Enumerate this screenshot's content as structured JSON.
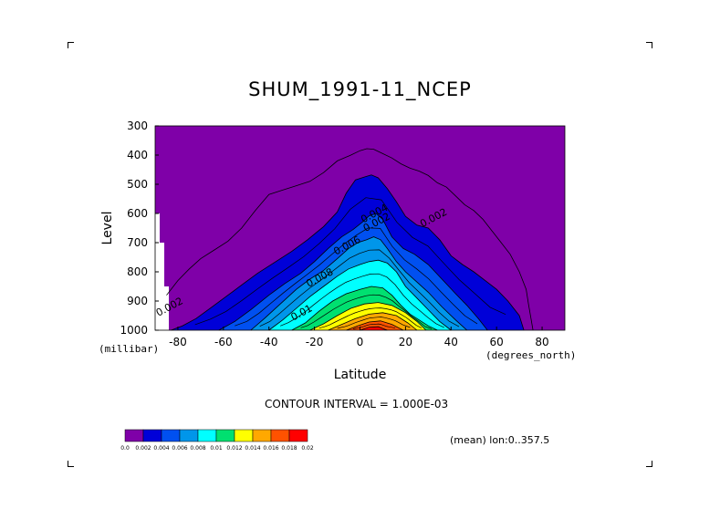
{
  "chart_data": {
    "type": "heatmap",
    "title": "SHUM_1991-11_NCEP",
    "xlabel": "Latitude",
    "ylabel": "Level",
    "x_unit_label": "(degrees_north)",
    "y_unit_label": "(millibar)",
    "xlim": [
      -90,
      90
    ],
    "ylim": [
      1000,
      300
    ],
    "x_ticks": [
      "-80",
      "-60",
      "-40",
      "-20",
      "0",
      "20",
      "40",
      "60",
      "80"
    ],
    "y_ticks": [
      "300",
      "400",
      "500",
      "600",
      "700",
      "800",
      "900",
      "1000"
    ],
    "contour_interval_text": "CONTOUR INTERVAL = 1.000E-03",
    "mean_text": "(mean) lon:0..357.5",
    "colorbar": {
      "colors": [
        "#7f00a8",
        "#0000d8",
        "#0050f0",
        "#0096ea",
        "#00ffff",
        "#00e070",
        "#ffff00",
        "#ffa800",
        "#ff5200",
        "#ff0000"
      ],
      "labels": [
        "0.0",
        "0.002",
        "0.004",
        "0.006",
        "0.008",
        "0.01",
        "0.012",
        "0.014",
        "0.016",
        "0.018",
        "0.02"
      ]
    },
    "contour_labels": [
      {
        "text": "0.002",
        "lat": 8,
        "level": 640
      },
      {
        "text": "0.002",
        "lat": 33,
        "level": 625
      },
      {
        "text": "0.004",
        "lat": 7,
        "level": 610
      },
      {
        "text": "0.006",
        "lat": -5,
        "level": 720
      },
      {
        "text": "0.008",
        "lat": -17,
        "level": 830
      },
      {
        "text": "0.01",
        "lat": -25,
        "level": 950
      },
      {
        "text": "0.002",
        "lat": -83,
        "level": 930
      }
    ],
    "series": [
      {
        "level_value": 0.0,
        "color": "#7f00a8",
        "lat": [
          -90,
          90
        ],
        "level": [
          300,
          300
        ]
      },
      {
        "level_value": 0.002,
        "color": "#0000d8",
        "lat": [
          -83,
          -78,
          -72,
          -65,
          -58,
          -52,
          -45,
          -38,
          -30,
          -23,
          -16,
          -10,
          -6,
          -2,
          2,
          5,
          8,
          12,
          16,
          20,
          25,
          30,
          35,
          40,
          45,
          50,
          55,
          60,
          65,
          70,
          72
        ],
        "level": [
          1000,
          985,
          960,
          920,
          880,
          845,
          805,
          770,
          730,
          690,
          645,
          595,
          530,
          485,
          475,
          468,
          478,
          515,
          560,
          610,
          640,
          650,
          690,
          745,
          775,
          800,
          830,
          860,
          900,
          950,
          1000
        ]
      },
      {
        "level_value": 0.004,
        "color": "#0050f0",
        "lat": [
          -62,
          -55,
          -48,
          -40,
          -33,
          -26,
          -20,
          -14,
          -8,
          -3,
          1,
          4,
          7,
          10,
          14,
          19,
          24,
          30,
          36,
          42,
          47,
          52,
          56
        ],
        "level": [
          1000,
          970,
          930,
          880,
          840,
          805,
          765,
          720,
          680,
          655,
          630,
          608,
          600,
          620,
          680,
          720,
          740,
          775,
          825,
          875,
          915,
          960,
          1000
        ]
      },
      {
        "level_value": 0.006,
        "color": "#0096ea",
        "lat": [
          -48,
          -42,
          -35,
          -28,
          -22,
          -16,
          -10,
          -5,
          -1,
          3,
          6,
          9,
          12,
          16,
          20,
          25,
          30,
          36,
          42,
          47
        ],
        "level": [
          1000,
          960,
          910,
          860,
          825,
          795,
          755,
          720,
          700,
          690,
          680,
          690,
          720,
          765,
          800,
          835,
          870,
          920,
          965,
          1000
        ]
      },
      {
        "level_value": 0.008,
        "color": "#00ffff",
        "lat": [
          -40,
          -34,
          -28,
          -22,
          -16,
          -10,
          -5,
          0,
          4,
          8,
          12,
          16,
          20,
          25,
          30,
          35,
          40
        ],
        "level": [
          1000,
          965,
          925,
          885,
          850,
          815,
          790,
          775,
          765,
          760,
          770,
          800,
          850,
          890,
          930,
          970,
          1000
        ]
      },
      {
        "level_value": 0.01,
        "color": "#00e070",
        "lat": [
          -30,
          -24,
          -18,
          -12,
          -6,
          0,
          5,
          10,
          14,
          18,
          22,
          26,
          30,
          34
        ],
        "level": [
          1000,
          975,
          935,
          900,
          875,
          860,
          850,
          855,
          880,
          915,
          945,
          965,
          985,
          1000
        ]
      },
      {
        "level_value": 0.012,
        "color": "#ffff00",
        "lat": [
          -22,
          -16,
          -10,
          -4,
          2,
          8,
          14,
          20,
          25,
          29
        ],
        "level": [
          1000,
          978,
          950,
          925,
          910,
          905,
          915,
          940,
          970,
          1000
        ]
      },
      {
        "level_value": 0.014,
        "color": "#ffa800",
        "lat": [
          -14,
          -8,
          -2,
          4,
          10,
          16,
          21,
          25
        ],
        "level": [
          1000,
          980,
          960,
          945,
          940,
          950,
          975,
          1000
        ]
      },
      {
        "level_value": 0.016,
        "color": "#ff5200",
        "lat": [
          -6,
          -1,
          4,
          9,
          14,
          19
        ],
        "level": [
          1000,
          985,
          972,
          968,
          980,
          1000
        ]
      },
      {
        "level_value": 0.018,
        "color": "#ff0000",
        "lat": [
          0,
          4,
          8,
          12
        ],
        "level": [
          1000,
          990,
          988,
          1000
        ]
      }
    ],
    "outer_contour_0_001": {
      "lat": [
        -85,
        -80,
        -75,
        -70,
        -64,
        -58,
        -52,
        -46,
        -40,
        -34,
        -28,
        -22,
        -16,
        -10,
        -4,
        0,
        3,
        6,
        10,
        14,
        18,
        22,
        26,
        30,
        34,
        38,
        42,
        46,
        50,
        54,
        58,
        62,
        66,
        70,
        73,
        74,
        76
      ],
      "level": [
        880,
        830,
        790,
        755,
        725,
        695,
        650,
        590,
        535,
        520,
        505,
        490,
        460,
        420,
        400,
        385,
        378,
        380,
        395,
        410,
        430,
        445,
        455,
        470,
        495,
        510,
        540,
        570,
        590,
        620,
        660,
        700,
        740,
        800,
        860,
        910,
        1000
      ]
    },
    "missing_region": {
      "lat": [
        -90,
        -88,
        -88,
        -86,
        -86,
        -84,
        -84,
        -90
      ],
      "level": [
        600,
        600,
        700,
        700,
        850,
        850,
        1000,
        1000
      ]
    }
  }
}
